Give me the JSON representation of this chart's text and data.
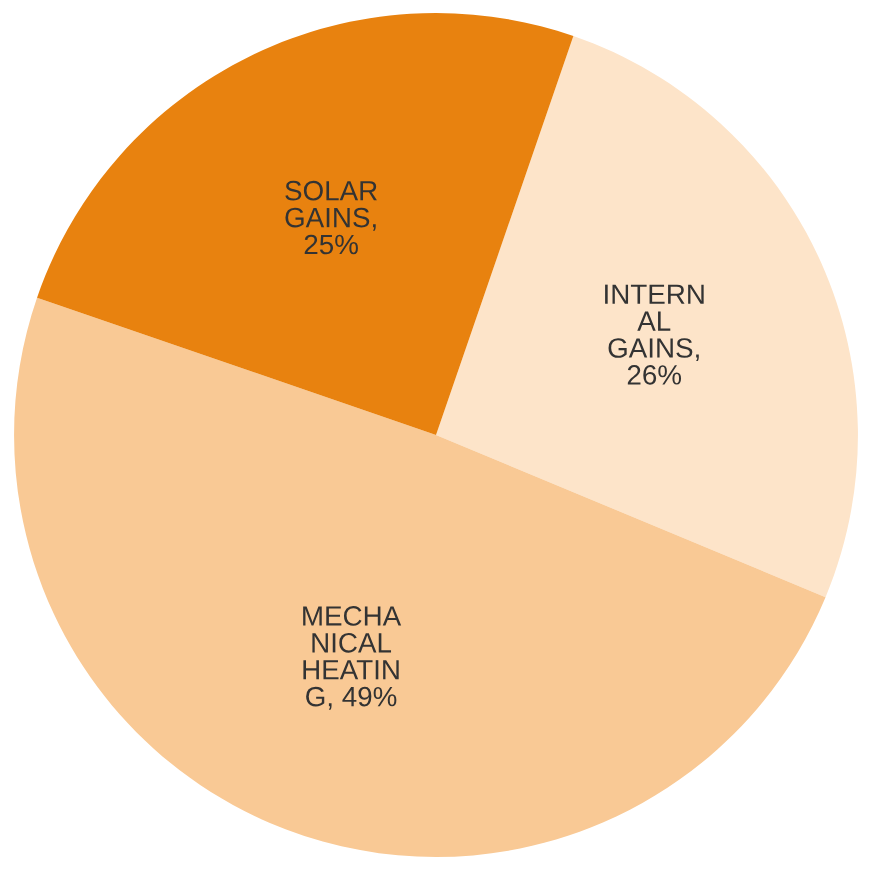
{
  "chart_data": {
    "type": "pie",
    "categories": [
      "INTERN\nAL\nGAINS",
      "MECHA\nNICAL\nHEATIN\nG",
      "SOLAR\nGAINS"
    ],
    "values": [
      26,
      49,
      25
    ],
    "colors": [
      "#fde4c9",
      "#f9c995",
      "#e8820f"
    ],
    "value_labels": [
      ",\n26%",
      ", 49%",
      ",\n25%"
    ]
  }
}
